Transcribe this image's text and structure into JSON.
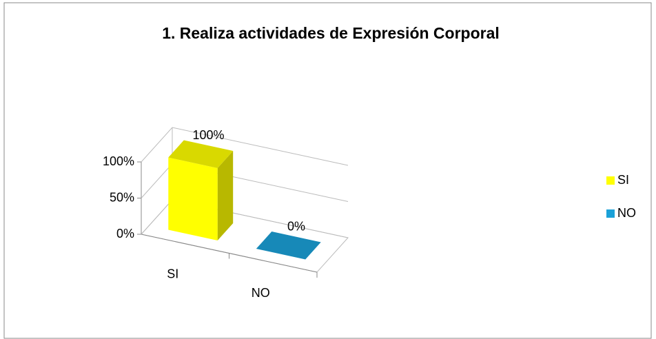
{
  "chart_data": {
    "type": "bar3d",
    "title": "1. Realiza actividades de Expresión Corporal",
    "categories": [
      "SI",
      "NO"
    ],
    "values": [
      100,
      0
    ],
    "value_labels": [
      "100%",
      "0%"
    ],
    "colors": [
      "#ffff00",
      "#1ba1d8"
    ],
    "ylim": [
      0,
      100
    ],
    "yticks": [
      {
        "value": 0,
        "label": "0%"
      },
      {
        "value": 50,
        "label": "50%"
      },
      {
        "value": 100,
        "label": "100%"
      }
    ],
    "grid": true,
    "legend": "right"
  }
}
